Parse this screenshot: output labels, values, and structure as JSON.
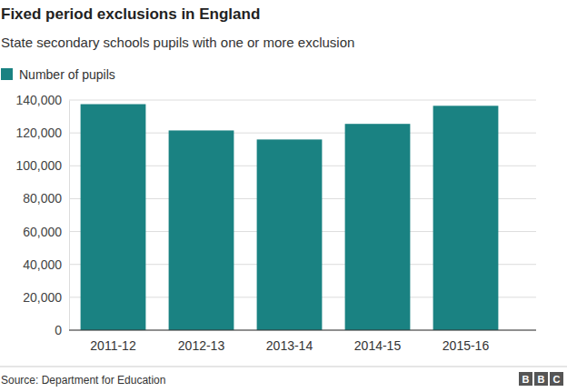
{
  "chart_data": {
    "type": "bar",
    "title": "Fixed period exclusions in England",
    "subtitle": "State secondary schools pupils with one or more exclusion",
    "categories": [
      "2011-12",
      "2012-13",
      "2013-14",
      "2014-15",
      "2015-16"
    ],
    "series": [
      {
        "name": "Number of pupils",
        "color": "#1a8282",
        "values": [
          137500,
          121500,
          116000,
          125500,
          136500
        ]
      }
    ],
    "ylim": [
      0,
      140000
    ],
    "yticks": [
      0,
      {
        "value": 20000,
        "label": "20,000"
      },
      {
        "value": 40000,
        "label": "40,000"
      },
      {
        "value": 60000,
        "label": "60,000"
      },
      {
        "value": 80000,
        "label": "80,000"
      },
      {
        "value": 100000,
        "label": "100,000"
      },
      {
        "value": 120000,
        "label": "120,000"
      },
      {
        "value": 140000,
        "label": "140,000"
      }
    ],
    "grid": true,
    "legend": "top-left",
    "source": "Source: Department for Education",
    "logo": "BBC"
  }
}
